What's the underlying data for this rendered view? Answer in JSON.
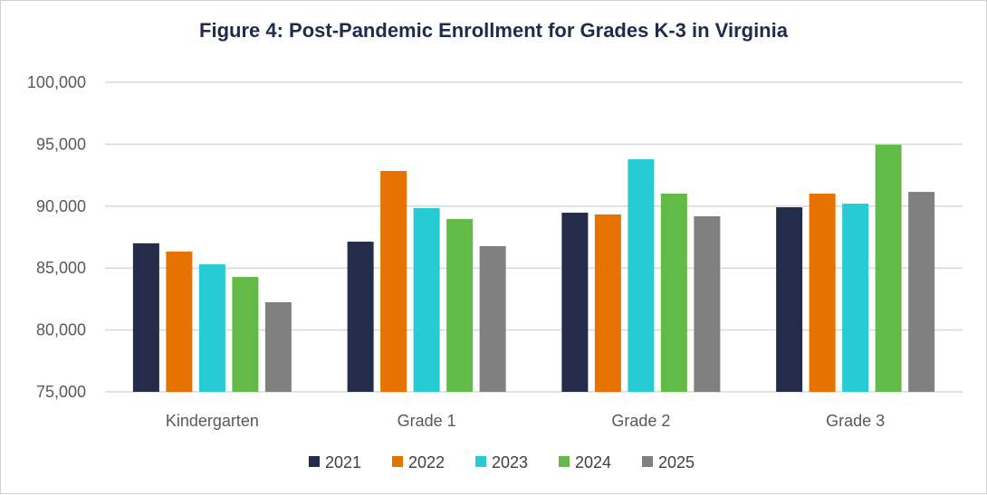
{
  "chart_data": {
    "type": "bar",
    "title": "Figure 4: Post-Pandemic Enrollment for Grades K-3 in Virginia",
    "xlabel": "",
    "ylabel": "",
    "categories": [
      "Kindergarten",
      "Grade 1",
      "Grade 2",
      "Grade 3"
    ],
    "ylim": [
      75000,
      100000
    ],
    "yticks": [
      75000,
      80000,
      85000,
      90000,
      95000,
      100000
    ],
    "ytick_labels": [
      "75,000",
      "80,000",
      "85,000",
      "90,000",
      "95,000",
      "100,000"
    ],
    "grid": true,
    "legend_position": "bottom",
    "series": [
      {
        "name": "2021",
        "color": "#242c4c",
        "values": [
          87000,
          87130,
          89470,
          89910
        ]
      },
      {
        "name": "2022",
        "color": "#e67300",
        "values": [
          86330,
          92840,
          89330,
          91010
        ]
      },
      {
        "name": "2023",
        "color": "#26cbd3",
        "values": [
          85300,
          89840,
          93790,
          90200
        ]
      },
      {
        "name": "2024",
        "color": "#63bb47",
        "values": [
          84280,
          88960,
          91010,
          94960
        ]
      },
      {
        "name": "2025",
        "color": "#808080",
        "values": [
          82240,
          86770,
          89180,
          91150
        ]
      }
    ]
  }
}
